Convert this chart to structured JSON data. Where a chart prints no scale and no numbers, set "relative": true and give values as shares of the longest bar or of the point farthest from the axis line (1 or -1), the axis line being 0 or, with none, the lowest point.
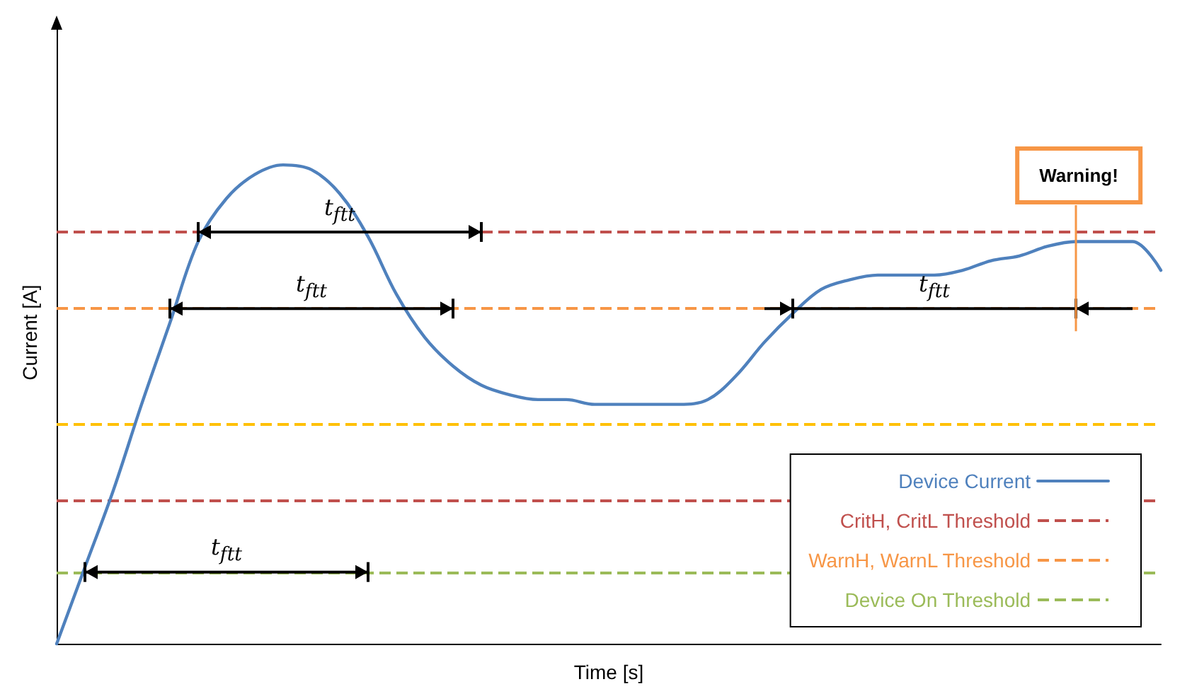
{
  "chart_data": {
    "type": "line",
    "relative": true,
    "xlabel": "Time [s]",
    "ylabel": "Current [A]",
    "categories": [
      null,
      null,
      null,
      null,
      null,
      null,
      null,
      null,
      null,
      null,
      null,
      null,
      null,
      null,
      null,
      null,
      null,
      null,
      null,
      null,
      null,
      null,
      null,
      null,
      null,
      null,
      null,
      null,
      null,
      null,
      null,
      null,
      null,
      null,
      null,
      null,
      null,
      null,
      null,
      null
    ],
    "series": [
      {
        "name": "Device Current",
        "color": "#4f81bd",
        "values": [
          0,
          0.16,
          0.32,
          0.5,
          0.67,
          0.84,
          0.93,
          0.98,
          1,
          0.99,
          0.94,
          0.85,
          0.73,
          0.64,
          0.58,
          0.54,
          0.52,
          0.51,
          0.51,
          0.5,
          0.5,
          0.5,
          0.5,
          0.51,
          0.56,
          0.63,
          0.69,
          0.74,
          0.76,
          0.77,
          0.77,
          0.77,
          0.78,
          0.8,
          0.81,
          0.83,
          0.84,
          0.84,
          0.84,
          0.78
        ]
      }
    ],
    "ref_lines": [
      {
        "axis": "y",
        "value": 0.86,
        "label": "CritH, CritL Threshold",
        "color": "#c0504d",
        "line_style": "dashed"
      },
      {
        "axis": "y",
        "value": 0.3,
        "color": "#c0504d",
        "line_style": "dashed"
      },
      {
        "axis": "y",
        "value": 0.7,
        "label": "WarnH, WarnL Threshold",
        "color": "#f79646",
        "line_style": "dashed"
      },
      {
        "axis": "y",
        "value": 0.46,
        "color": "#ffc000",
        "line_style": "dashed"
      },
      {
        "axis": "y",
        "value": 0.15,
        "label": "Device On Threshold",
        "color": "#9bbb59",
        "line_style": "dashed"
      }
    ],
    "annotations": [
      "t$_{ftt}$",
      "t$_{ftt}$",
      "t$_{ftt}$",
      "t$_{ftt}$",
      "Warning!"
    ],
    "marker": "none",
    "line_style": "solid",
    "grid": false,
    "legend": "bottom right"
  }
}
